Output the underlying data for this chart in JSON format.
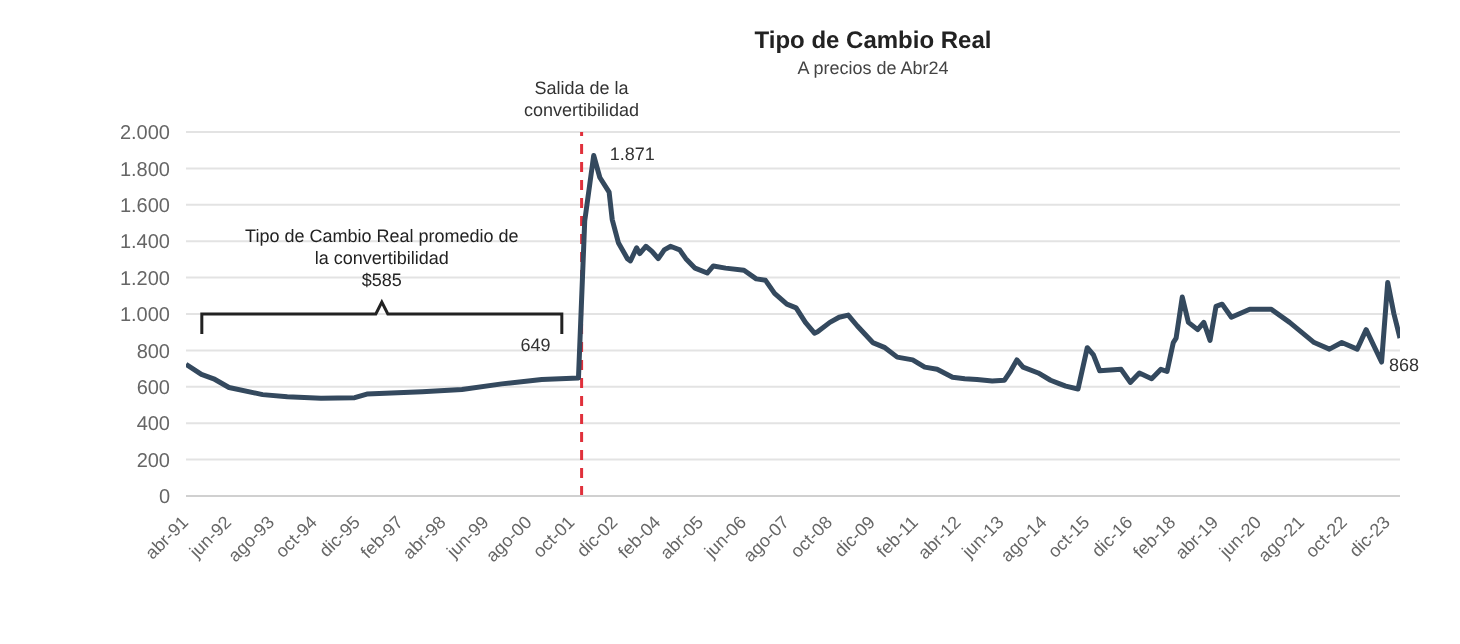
{
  "chart_data": {
    "type": "line",
    "title": "Tipo de Cambio Real",
    "subtitle": "A precios de Abr24",
    "x": [
      "1991-04",
      "1991-09",
      "1992-01",
      "1992-06",
      "1993-05",
      "1994-01",
      "1994-12",
      "1995-11",
      "1996-03",
      "1997-09",
      "1998-10",
      "1999-11",
      "2000-12",
      "2001-12",
      "2002-02",
      "2002-05",
      "2002-07",
      "2002-10",
      "2002-11",
      "2003-01",
      "2003-04",
      "2003-05",
      "2003-07",
      "2003-08",
      "2003-10",
      "2003-12",
      "2004-02",
      "2004-04",
      "2004-06",
      "2004-09",
      "2004-11",
      "2005-02",
      "2005-06",
      "2005-08",
      "2005-12",
      "2006-06",
      "2006-10",
      "2007-01",
      "2007-04",
      "2007-08",
      "2007-11",
      "2008-02",
      "2008-05",
      "2008-06",
      "2008-10",
      "2009-01",
      "2009-04",
      "2009-07",
      "2009-12",
      "2010-04",
      "2010-08",
      "2011-01",
      "2011-05",
      "2011-09",
      "2012-02",
      "2012-06",
      "2012-10",
      "2013-03",
      "2013-07",
      "2013-09",
      "2013-11",
      "2014-01",
      "2014-06",
      "2014-10",
      "2015-01",
      "2015-03",
      "2015-07",
      "2015-10",
      "2015-12",
      "2016-02",
      "2016-09",
      "2016-12",
      "2017-03",
      "2017-07",
      "2017-10",
      "2017-12",
      "2018-02",
      "2018-03",
      "2018-05",
      "2018-07",
      "2018-10",
      "2018-12",
      "2019-02",
      "2019-04",
      "2019-06",
      "2019-09",
      "2020-03",
      "2020-10",
      "2021-04",
      "2021-12",
      "2022-05",
      "2022-09",
      "2023-02",
      "2023-05",
      "2023-10",
      "2023-12",
      "2024-02",
      "2024-04"
    ],
    "series": [
      {
        "color": "#34495e",
        "values": [
          724,
          668,
          644,
          596,
          557,
          545,
          537,
          540,
          560,
          573,
          585,
          616,
          640,
          649,
          1511,
          1871,
          1750,
          1670,
          1519,
          1392,
          1304,
          1292,
          1364,
          1332,
          1372,
          1344,
          1304,
          1352,
          1372,
          1352,
          1304,
          1252,
          1225,
          1264,
          1252,
          1240,
          1193,
          1185,
          1113,
          1054,
          1034,
          954,
          895,
          903,
          954,
          982,
          994,
          934,
          843,
          815,
          763,
          748,
          708,
          696,
          652,
          644,
          640,
          632,
          636,
          688,
          748,
          708,
          676,
          636,
          616,
          604,
          588,
          815,
          775,
          688,
          696,
          624,
          676,
          644,
          696,
          684,
          843,
          867,
          1093,
          954,
          914,
          954,
          855,
          1042,
          1054,
          982,
          1026,
          1026,
          954,
          843,
          807,
          843,
          807,
          914,
          736,
          1173,
          1000,
          868
        ]
      }
    ],
    "xlim": [
      "1991-04",
      "2024-04"
    ],
    "xticks": [
      {
        "value": "1991-04",
        "label": "abr-91"
      },
      {
        "value": "1992-06",
        "label": "jun-92"
      },
      {
        "value": "1993-08",
        "label": "ago-93"
      },
      {
        "value": "1994-10",
        "label": "oct-94"
      },
      {
        "value": "1995-12",
        "label": "dic-95"
      },
      {
        "value": "1997-02",
        "label": "feb-97"
      },
      {
        "value": "1998-04",
        "label": "abr-98"
      },
      {
        "value": "1999-06",
        "label": "jun-99"
      },
      {
        "value": "2000-08",
        "label": "ago-00"
      },
      {
        "value": "2001-10",
        "label": "oct-01"
      },
      {
        "value": "2002-12",
        "label": "dic-02"
      },
      {
        "value": "2004-02",
        "label": "feb-04"
      },
      {
        "value": "2005-04",
        "label": "abr-05"
      },
      {
        "value": "2006-06",
        "label": "jun-06"
      },
      {
        "value": "2007-08",
        "label": "ago-07"
      },
      {
        "value": "2008-10",
        "label": "oct-08"
      },
      {
        "value": "2009-12",
        "label": "dic-09"
      },
      {
        "value": "2011-02",
        "label": "feb-11"
      },
      {
        "value": "2012-04",
        "label": "abr-12"
      },
      {
        "value": "2013-06",
        "label": "jun-13"
      },
      {
        "value": "2014-08",
        "label": "ago-14"
      },
      {
        "value": "2015-10",
        "label": "oct-15"
      },
      {
        "value": "2016-12",
        "label": "dic-16"
      },
      {
        "value": "2018-02",
        "label": "feb-18"
      },
      {
        "value": "2019-04",
        "label": "abr-19"
      },
      {
        "value": "2020-06",
        "label": "jun-20"
      },
      {
        "value": "2021-08",
        "label": "ago-21"
      },
      {
        "value": "2022-10",
        "label": "oct-22"
      },
      {
        "value": "2023-12",
        "label": "dic-23"
      }
    ],
    "ylim": [
      0,
      2000
    ],
    "yticks": [
      0,
      {
        "value": 200,
        "label": "200"
      },
      {
        "value": 400,
        "label": "400"
      },
      {
        "value": 600,
        "label": "600"
      },
      {
        "value": 800,
        "label": "800"
      },
      {
        "value": 1000,
        "label": "1.000"
      },
      {
        "value": 1200,
        "label": "1.200"
      },
      {
        "value": 1400,
        "label": "1.400"
      },
      {
        "value": 1600,
        "label": "1.600"
      },
      {
        "value": 1800,
        "label": "1.800"
      },
      {
        "value": 2000,
        "label": "2.000"
      }
    ],
    "grid": "y",
    "ref_lines": [
      {
        "axis": "x",
        "value": "2002-01",
        "label": "Salida de la convertibilidad",
        "color": "#e0303b",
        "line_style": "dashed"
      }
    ],
    "annotations": [
      {
        "text": "1.871",
        "x": "2002-05",
        "y": 1871
      },
      {
        "text": "649",
        "x": "2001-12",
        "y": 649
      },
      {
        "text": "868",
        "x": "2024-04",
        "y": 868
      },
      "Tipo de Cambio Real promedio de\nla convertibilidad\n$585"
    ]
  }
}
